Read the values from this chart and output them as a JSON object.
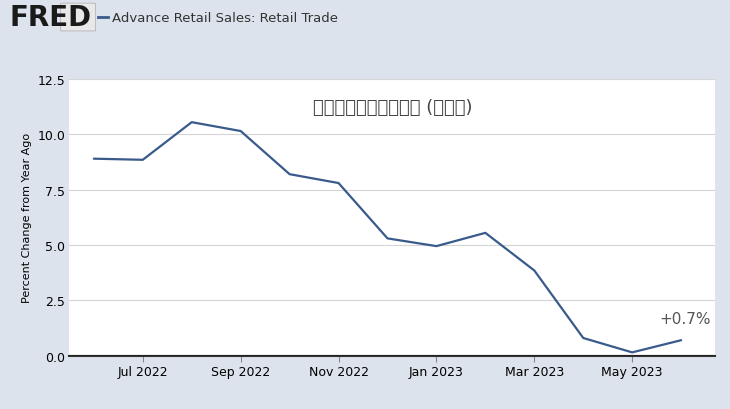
{
  "title": "アメリカの小売売上高 (前年比)",
  "ylabel": "Percent Change from Year Ago",
  "header_label": "Advance Retail Sales: Retail Trade",
  "fred_text": "FRED",
  "ylim": [
    0.0,
    12.5
  ],
  "yticks": [
    0.0,
    2.5,
    5.0,
    7.5,
    10.0,
    12.5
  ],
  "annotation": "+0.7%",
  "line_color": "#3a5a8c",
  "bg_outer": "#dce3ec",
  "bg_inner": "#ffffff",
  "x_positions": [
    0,
    1,
    2,
    3,
    4,
    5,
    6,
    7,
    8,
    9,
    10,
    11,
    12
  ],
  "values": [
    8.9,
    8.85,
    10.55,
    10.15,
    8.2,
    7.8,
    5.3,
    4.95,
    5.55,
    3.85,
    0.8,
    0.15,
    0.7
  ],
  "xtick_positions": [
    1,
    3,
    5,
    7,
    9,
    11
  ],
  "xtick_labels": [
    "Jul 2022",
    "Sep 2022",
    "Nov 2022",
    "Jan 2023",
    "Mar 2023",
    "May 2023"
  ],
  "title_fontsize": 13,
  "annotation_fontsize": 11,
  "header_fontsize": 9.5,
  "ylabel_fontsize": 8,
  "tick_fontsize": 9,
  "fred_fontsize": 20
}
